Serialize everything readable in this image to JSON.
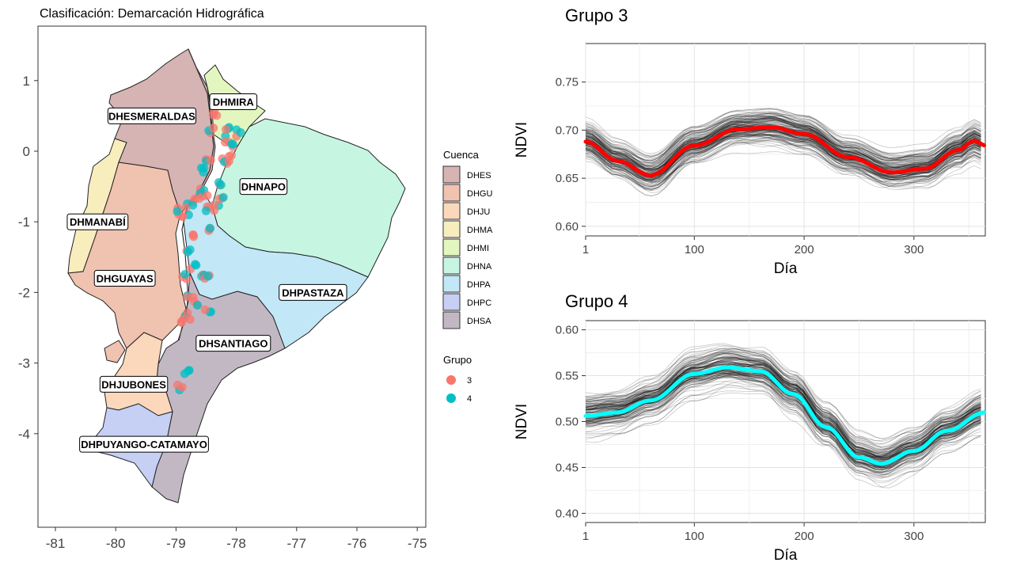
{
  "map": {
    "title": "Clasificación: Demarcación Hidrográfica",
    "x_ticks": [
      "-81",
      "-80",
      "-79",
      "-78",
      "-77",
      "-76",
      "-75"
    ],
    "y_ticks": [
      "1",
      "0",
      "-1",
      "-2",
      "-3",
      "-4"
    ],
    "x_range": [
      -81.3,
      -74.9
    ],
    "y_range": [
      -5.3,
      1.8
    ],
    "region_labels": [
      {
        "text": "DHESMERALDAS",
        "lon": -79.4,
        "lat": 0.5
      },
      {
        "text": "DHMIRA",
        "lon": -78.05,
        "lat": 0.7
      },
      {
        "text": "DHNAPO",
        "lon": -77.55,
        "lat": -0.5
      },
      {
        "text": "DHMANABÍ",
        "lon": -80.3,
        "lat": -1.0
      },
      {
        "text": "DHGUAYAS",
        "lon": -79.85,
        "lat": -1.8
      },
      {
        "text": "DHPASTAZA",
        "lon": -76.73,
        "lat": -2.0
      },
      {
        "text": "DHSANTIAGO",
        "lon": -78.05,
        "lat": -2.72
      },
      {
        "text": "DHJUBONES",
        "lon": -79.7,
        "lat": -3.3
      },
      {
        "text": "DHPUYANGO-CATAMAYO",
        "lon": -79.53,
        "lat": -4.15
      }
    ],
    "legend_cuenca": {
      "title": "Cuenca",
      "items": [
        {
          "label": "DHES",
          "color": "#d6b4b4"
        },
        {
          "label": "DHGU",
          "color": "#f0c2b0"
        },
        {
          "label": "DHJU",
          "color": "#fbd7bb"
        },
        {
          "label": "DHMA",
          "color": "#f8edbd"
        },
        {
          "label": "DHMI",
          "color": "#e3f6c0"
        },
        {
          "label": "DHNA",
          "color": "#c6f6e1"
        },
        {
          "label": "DHPA",
          "color": "#c2e7f6"
        },
        {
          "label": "DHPC",
          "color": "#c6cff4"
        },
        {
          "label": "DHSA",
          "color": "#c2b8c4"
        }
      ]
    },
    "legend_grupo": {
      "title": "Grupo",
      "items": [
        {
          "label": "3",
          "color": "#f8766d"
        },
        {
          "label": "4",
          "color": "#00bfc4"
        }
      ]
    }
  },
  "charts": [
    {
      "title": "Grupo 3",
      "xlabel": "Día",
      "ylabel": "NDVI",
      "x_ticks": [
        "1",
        "100",
        "200",
        "300"
      ],
      "y_ticks": [
        "0.60",
        "0.65",
        "0.70",
        "0.75"
      ],
      "mean_color": "#ff0000",
      "chart_data": {
        "type": "line",
        "xlim": [
          1,
          365
        ],
        "ylim": [
          0.59,
          0.79
        ],
        "mean_curve": {
          "x": [
            1,
            30,
            60,
            100,
            140,
            170,
            200,
            240,
            280,
            310,
            340,
            355,
            365
          ],
          "y": [
            0.688,
            0.668,
            0.653,
            0.684,
            0.701,
            0.703,
            0.696,
            0.672,
            0.656,
            0.66,
            0.679,
            0.689,
            0.684
          ]
        }
      }
    },
    {
      "title": "Grupo 4",
      "xlabel": "Día",
      "ylabel": "NDVI",
      "x_ticks": [
        "1",
        "100",
        "200",
        "300"
      ],
      "y_ticks": [
        "0.40",
        "0.45",
        "0.50",
        "0.55",
        "0.60"
      ],
      "mean_color": "#00ffff",
      "chart_data": {
        "type": "line",
        "xlim": [
          1,
          365
        ],
        "ylim": [
          0.39,
          0.61
        ],
        "mean_curve": {
          "x": [
            1,
            30,
            60,
            100,
            130,
            160,
            190,
            220,
            250,
            270,
            300,
            330,
            365
          ],
          "y": [
            0.506,
            0.51,
            0.523,
            0.552,
            0.559,
            0.555,
            0.53,
            0.494,
            0.461,
            0.454,
            0.468,
            0.49,
            0.51
          ]
        }
      }
    }
  ]
}
